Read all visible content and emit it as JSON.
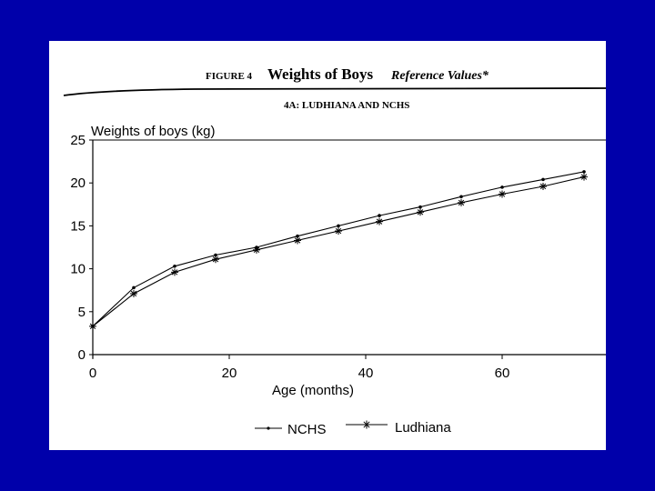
{
  "header": {
    "figure_label": "FIGURE 4",
    "figure_title": "Weights of Boys",
    "figure_subtitle": "Reference Values*",
    "panel_label": "4A:  LUDHIANA AND NCHS"
  },
  "chart_data": {
    "type": "line",
    "title": "Weights of boys (kg)",
    "xlabel": "Age (months)",
    "ylabel": "",
    "xlim": [
      0,
      72
    ],
    "ylim": [
      0,
      25
    ],
    "x_ticks": [
      0,
      20,
      40,
      60
    ],
    "y_ticks": [
      0,
      5,
      10,
      15,
      20,
      25
    ],
    "legend_position": "bottom",
    "series": [
      {
        "name": "NCHS",
        "marker": "dot",
        "color": "#000000",
        "x": [
          0,
          6,
          12,
          18,
          24,
          30,
          36,
          42,
          48,
          54,
          60,
          66,
          72
        ],
        "y": [
          3.3,
          7.8,
          10.3,
          11.6,
          12.5,
          13.8,
          15.0,
          16.2,
          17.2,
          18.4,
          19.5,
          20.4,
          21.3
        ]
      },
      {
        "name": "Ludhiana",
        "marker": "asterisk",
        "color": "#000000",
        "x": [
          0,
          6,
          12,
          18,
          24,
          30,
          36,
          42,
          48,
          54,
          60,
          66,
          72
        ],
        "y": [
          3.3,
          7.1,
          9.6,
          11.1,
          12.2,
          13.3,
          14.4,
          15.5,
          16.6,
          17.7,
          18.7,
          19.6,
          20.7
        ]
      }
    ]
  }
}
